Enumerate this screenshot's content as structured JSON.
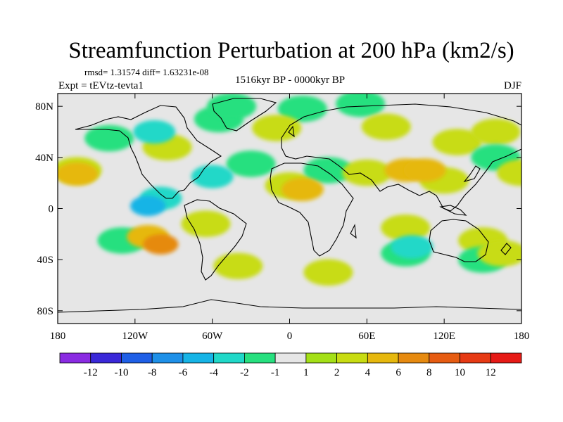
{
  "chart_data": {
    "type": "heatmap",
    "title": "Streamfunction Perturbation at 200 hPa (km2/s)",
    "stats_line": "rmsd= 1.31574 diff= 1.63231e-08",
    "left_label": "Expt = tEVtz-tevta1",
    "center_label": "1516kyr BP - 0000kyr BP",
    "right_label": "DJF",
    "x_ticks": [
      "180",
      "120W",
      "60W",
      "0",
      "60E",
      "120E",
      "180"
    ],
    "y_ticks": [
      "80N",
      "40N",
      "0",
      "40S",
      "80S"
    ],
    "xlim": [
      -180,
      180
    ],
    "ylim": [
      -90,
      90
    ],
    "colorbar": {
      "labels": [
        "-12",
        "-10",
        "-8",
        "-6",
        "-4",
        "-2",
        "-1",
        "1",
        "2",
        "4",
        "6",
        "8",
        "10",
        "12"
      ],
      "colors": [
        "#8a2be2",
        "#3a28d8",
        "#1f5fe6",
        "#1e90e8",
        "#16b4e6",
        "#20d8c8",
        "#27e07f",
        "#e6e6e6",
        "#a4e017",
        "#c8dc12",
        "#e6b80e",
        "#e68a10",
        "#e65c12",
        "#e63a14",
        "#e61a16"
      ]
    },
    "anomalies": [
      {
        "lon": -140,
        "lat": 55,
        "value": -2
      },
      {
        "lon": -105,
        "lat": 60,
        "value": -4
      },
      {
        "lon": -55,
        "lat": 70,
        "value": -2
      },
      {
        "lon": -30,
        "lat": 35,
        "value": -2
      },
      {
        "lon": -60,
        "lat": 25,
        "value": -4
      },
      {
        "lon": -100,
        "lat": 8,
        "value": -4
      },
      {
        "lon": -110,
        "lat": 2,
        "value": -6
      },
      {
        "lon": -45,
        "lat": 80,
        "value": -2
      },
      {
        "lon": 10,
        "lat": 78,
        "value": -2
      },
      {
        "lon": 55,
        "lat": 82,
        "value": -2
      },
      {
        "lon": -10,
        "lat": 63,
        "value": 2
      },
      {
        "lon": -95,
        "lat": 48,
        "value": 2
      },
      {
        "lon": -165,
        "lat": 30,
        "value": 2
      },
      {
        "lon": -165,
        "lat": 27,
        "value": 4
      },
      {
        "lon": -130,
        "lat": -25,
        "value": -2
      },
      {
        "lon": -110,
        "lat": -22,
        "value": 4
      },
      {
        "lon": -100,
        "lat": -28,
        "value": 6
      },
      {
        "lon": -65,
        "lat": -12,
        "value": 2
      },
      {
        "lon": -40,
        "lat": -45,
        "value": 2
      },
      {
        "lon": 0,
        "lat": 18,
        "value": 2
      },
      {
        "lon": 10,
        "lat": 15,
        "value": 4
      },
      {
        "lon": 30,
        "lat": 30,
        "value": -2
      },
      {
        "lon": 30,
        "lat": -50,
        "value": 2
      },
      {
        "lon": 60,
        "lat": 28,
        "value": 2
      },
      {
        "lon": 90,
        "lat": 30,
        "value": 4
      },
      {
        "lon": 105,
        "lat": 30,
        "value": 4
      },
      {
        "lon": 120,
        "lat": 22,
        "value": 2
      },
      {
        "lon": 130,
        "lat": 52,
        "value": 2
      },
      {
        "lon": 160,
        "lat": 60,
        "value": 2
      },
      {
        "lon": 160,
        "lat": 40,
        "value": -2
      },
      {
        "lon": 75,
        "lat": 64,
        "value": 2
      },
      {
        "lon": 90,
        "lat": -35,
        "value": -2
      },
      {
        "lon": 95,
        "lat": -30,
        "value": -4
      },
      {
        "lon": 90,
        "lat": -15,
        "value": 2
      },
      {
        "lon": 150,
        "lat": -25,
        "value": 2
      },
      {
        "lon": 150,
        "lat": -40,
        "value": -2
      },
      {
        "lon": 165,
        "lat": -35,
        "value": 2
      },
      {
        "lon": 180,
        "lat": 28,
        "value": 2
      }
    ]
  }
}
